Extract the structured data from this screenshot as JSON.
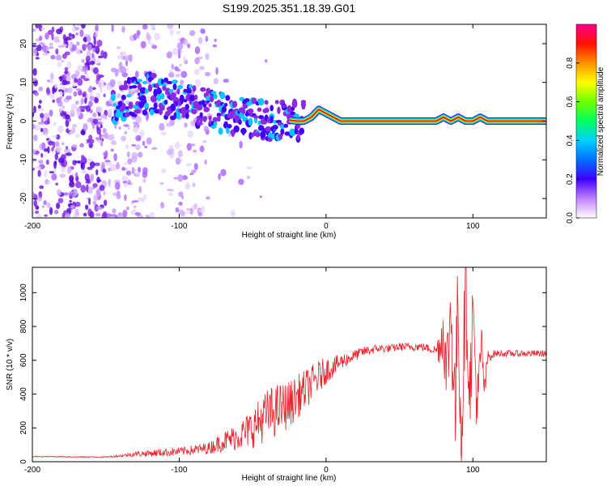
{
  "page": {
    "title": "S199.2025.351.18.39.G01"
  },
  "chart_data": [
    {
      "type": "heatmap",
      "title": "S199.2025.351.18.39.G01",
      "xlabel": "Height of straight line (km)",
      "ylabel": "Frequency (Hz)",
      "xlim": [
        -200,
        150
      ],
      "ylim": [
        -25,
        25
      ],
      "xticks": [
        -200,
        -100,
        0,
        100
      ],
      "yticks": [
        20,
        10,
        0,
        -10,
        -20
      ],
      "xtick_labels": [
        "-200",
        "-100",
        "0",
        "100"
      ],
      "ytick_labels": [
        "20",
        "10",
        "0",
        "-10",
        "-20"
      ],
      "colorbar": {
        "label": "Normalized spectral amplitude",
        "range": [
          0,
          1
        ],
        "ticks": [
          0,
          0.2,
          0.4,
          0.6,
          0.8
        ],
        "tick_labels": [
          "0.0",
          "0.2",
          "0.4",
          "0.6",
          "0.8"
        ]
      },
      "ridge": {
        "x": [
          -145,
          -130,
          -120,
          -110,
          -100,
          -90,
          -80,
          -70,
          -60,
          -50,
          -40,
          -30,
          -20,
          -15,
          -10,
          -5,
          0,
          5,
          10,
          20,
          50,
          75,
          80,
          85,
          90,
          95,
          100,
          105,
          110,
          150
        ],
        "y": [
          5,
          6,
          7.5,
          6,
          5,
          4,
          3,
          2,
          1.5,
          1,
          0,
          0.5,
          0,
          0,
          1,
          3,
          2,
          1,
          0,
          0,
          0,
          0,
          1,
          0,
          1,
          0,
          0,
          1,
          0,
          0
        ]
      },
      "colors": {
        "ridge_high": "#ff0033",
        "ridge_mid": "#00c8ff",
        "scatter": "#8a2be2"
      }
    },
    {
      "type": "line",
      "xlabel": "Height of straight line (km)",
      "ylabel": "SNR (10 * v/v)",
      "xlim": [
        -200,
        150
      ],
      "ylim": [
        0,
        1150
      ],
      "xticks": [
        -200,
        -100,
        0,
        100
      ],
      "yticks": [
        0,
        200,
        400,
        600,
        800,
        1000
      ],
      "xtick_labels": [
        "-200",
        "-100",
        "0",
        "100"
      ],
      "ytick_labels": [
        "0",
        "200",
        "400",
        "600",
        "800",
        "1000"
      ],
      "series": [
        {
          "name": "SNR",
          "color": "#e8242b",
          "x": [
            -200,
            -190,
            -180,
            -170,
            -160,
            -150,
            -140,
            -130,
            -120,
            -110,
            -100,
            -90,
            -80,
            -70,
            -60,
            -50,
            -45,
            -40,
            -35,
            -30,
            -25,
            -20,
            -15,
            -10,
            -5,
            0,
            5,
            10,
            15,
            20,
            25,
            30,
            35,
            40,
            45,
            50,
            55,
            60,
            65,
            70,
            75,
            78,
            80,
            82,
            85,
            88,
            90,
            92,
            95,
            98,
            100,
            103,
            106,
            108,
            110,
            115,
            120,
            130,
            140,
            150
          ],
          "y": [
            30,
            30,
            30,
            28,
            28,
            28,
            35,
            45,
            50,
            55,
            60,
            70,
            80,
            120,
            150,
            200,
            240,
            280,
            300,
            320,
            340,
            380,
            420,
            460,
            500,
            540,
            560,
            590,
            610,
            630,
            650,
            660,
            670,
            670,
            670,
            680,
            680,
            680,
            680,
            670,
            660,
            700,
            800,
            500,
            900,
            300,
            1000,
            100,
            1050,
            400,
            900,
            300,
            700,
            400,
            620,
            640,
            640,
            640,
            640,
            640
          ],
          "noise": [
            3,
            3,
            3,
            3,
            3,
            3,
            8,
            15,
            20,
            25,
            25,
            30,
            35,
            60,
            80,
            120,
            140,
            150,
            160,
            150,
            140,
            130,
            120,
            110,
            100,
            80,
            60,
            50,
            40,
            35,
            30,
            30,
            25,
            25,
            25,
            25,
            25,
            25,
            25,
            25,
            30,
            150,
            200,
            250,
            300,
            350,
            300,
            350,
            300,
            250,
            250,
            200,
            150,
            100,
            40,
            20,
            20,
            20,
            20,
            20
          ]
        }
      ]
    }
  ]
}
